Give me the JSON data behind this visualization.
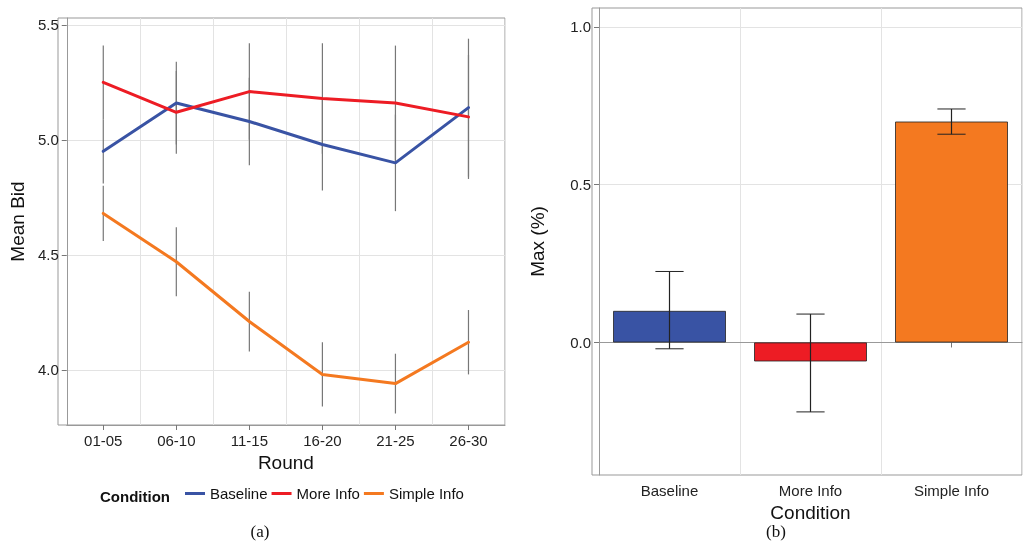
{
  "chart_data": [
    {
      "type": "line",
      "xlabel": "Round",
      "ylabel": "Mean Bid",
      "legend_title": "Condition",
      "legend": "bottom",
      "grid": true,
      "marker": "none",
      "categories": [
        "01-05",
        "06-10",
        "11-15",
        "16-20",
        "21-25",
        "26-30"
      ],
      "ylim": [
        3.76,
        5.53
      ],
      "yticks": [
        {
          "value": 4,
          "label": "4.0"
        },
        4.5,
        {
          "value": 5,
          "label": "5.0"
        },
        5.5
      ],
      "series": [
        {
          "name": "Baseline",
          "color": "#3953a4",
          "values": [
            4.95,
            5.16,
            5.08,
            4.98,
            4.9,
            5.14
          ],
          "errors": [
            0.14,
            0.18,
            0.19,
            0.2,
            0.21,
            0.3
          ]
        },
        {
          "name": "More Info",
          "color": "#ed1c24",
          "values": [
            5.25,
            5.12,
            5.21,
            5.18,
            5.16,
            5.1
          ],
          "errors": [
            0.16,
            0.18,
            0.21,
            0.24,
            0.25,
            0.27
          ]
        },
        {
          "name": "Simple Info",
          "color": "#f47920",
          "values": [
            4.68,
            4.47,
            4.21,
            3.98,
            3.94,
            4.12
          ],
          "errors": [
            0.12,
            0.15,
            0.13,
            0.14,
            0.13,
            0.14
          ]
        }
      ],
      "annotations": [
        "(a)"
      ]
    },
    {
      "type": "bar",
      "xlabel": "Condition",
      "ylabel": "Max (%)",
      "grid": true,
      "legend": false,
      "categories": [
        "Baseline",
        "More Info",
        "Simple Info"
      ],
      "values": [
        0.1,
        -0.06,
        0.7
      ],
      "colors": [
        "#3953a4",
        "#ed1c24",
        "#f47920"
      ],
      "errors": [
        [
          -0.02,
          0.225
        ],
        [
          -0.22,
          0.09
        ],
        [
          0.66,
          0.74
        ]
      ],
      "ylim": [
        -0.42,
        1.06
      ],
      "yticks": [
        {
          "value": 0,
          "label": "0.0"
        },
        0.5,
        {
          "value": 1,
          "label": "1.0"
        }
      ],
      "annotations": [
        "(b)"
      ]
    }
  ]
}
